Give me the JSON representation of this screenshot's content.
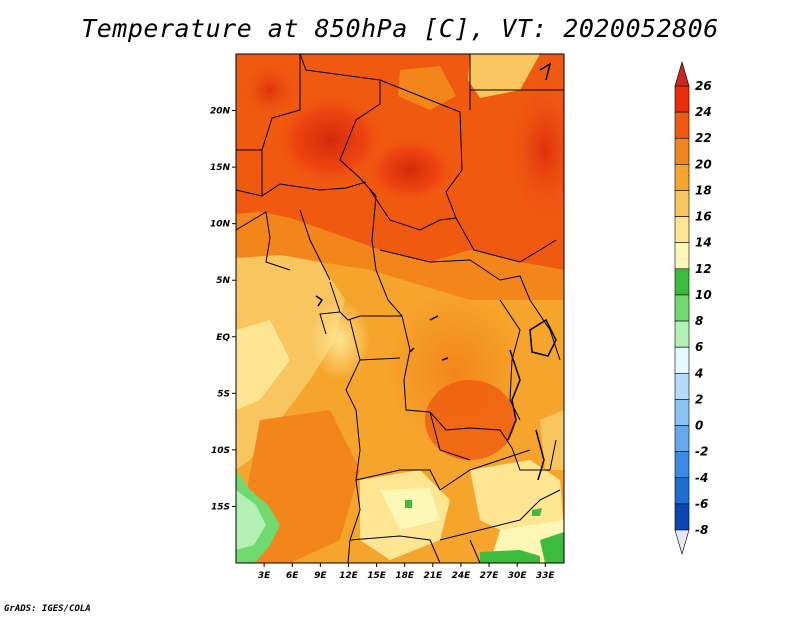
{
  "title": "Temperature at 850hPa [C], VT: 2020052806",
  "credit": "GrADS: IGES/COLA",
  "map": {
    "lat_labels": [
      {
        "label": "20N",
        "lat": 20
      },
      {
        "label": "15N",
        "lat": 15
      },
      {
        "label": "10N",
        "lat": 10
      },
      {
        "label": "5N",
        "lat": 5
      },
      {
        "label": "EQ",
        "lat": 0
      },
      {
        "label": "5S",
        "lat": -5
      },
      {
        "label": "10S",
        "lat": -10
      },
      {
        "label": "15S",
        "lat": -15
      }
    ],
    "lon_labels": [
      {
        "label": "3E",
        "lon": 3
      },
      {
        "label": "6E",
        "lon": 6
      },
      {
        "label": "9E",
        "lon": 9
      },
      {
        "label": "12E",
        "lon": 12
      },
      {
        "label": "15E",
        "lon": 15
      },
      {
        "label": "18E",
        "lon": 18
      },
      {
        "label": "21E",
        "lon": 21
      },
      {
        "label": "24E",
        "lon": 24
      },
      {
        "label": "27E",
        "lon": 27
      },
      {
        "label": "30E",
        "lon": 30
      },
      {
        "label": "33E",
        "lon": 33
      }
    ],
    "lon_range": [
      0,
      35
    ],
    "lat_range": [
      -20,
      25
    ]
  },
  "colorbar": {
    "labels": [
      "26",
      "24",
      "22",
      "20",
      "18",
      "16",
      "14",
      "12",
      "10",
      "8",
      "6",
      "4",
      "2",
      "0",
      "-2",
      "-4",
      "-6",
      "-8"
    ],
    "colors": [
      "#ee2c0c",
      "#f05a10",
      "#f3861a",
      "#f6a52c",
      "#f9c55e",
      "#fde592",
      "#fdf7b5",
      "#3cbc3c",
      "#70d970",
      "#b4f0b4",
      "#e4f8ff",
      "#b4dcfa",
      "#8ac4f4",
      "#64a8ee",
      "#3c8ce6",
      "#1e6ed2",
      "#0c46b4",
      "#081c82",
      "#e6e6ff"
    ],
    "over_color": "#c8281e",
    "under_color": "#e6e6ff"
  }
}
